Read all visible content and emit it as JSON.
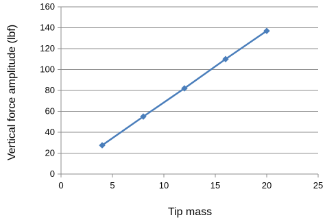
{
  "chart_data": {
    "type": "line",
    "title": "",
    "xlabel": "Tip mass",
    "ylabel": "Vertical force amplitude (lbf)",
    "xlim": [
      0,
      25
    ],
    "ylim": [
      0,
      160
    ],
    "xticks": [
      0,
      5,
      10,
      15,
      20,
      25
    ],
    "yticks": [
      0,
      20,
      40,
      60,
      80,
      100,
      120,
      140,
      160
    ],
    "grid": {
      "horizontal": true,
      "vertical": false
    },
    "legend": "none",
    "series": [
      {
        "color": "#4a7ebb",
        "marker": "diamond",
        "x": [
          4,
          8,
          12,
          16,
          20
        ],
        "y": [
          27.5,
          55,
          82,
          110,
          137
        ]
      }
    ]
  }
}
